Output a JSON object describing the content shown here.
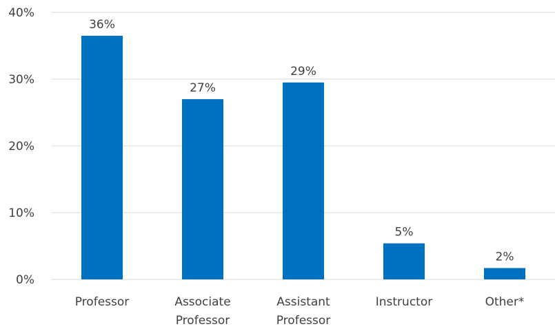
{
  "chart_data": {
    "type": "bar",
    "title": "",
    "xlabel": "",
    "ylabel": "",
    "categories": [
      [
        "Professor"
      ],
      [
        "Associate",
        "Professor"
      ],
      [
        "Assistant",
        "Professor"
      ],
      [
        "Instructor"
      ],
      [
        "Other*"
      ]
    ],
    "values": [
      36.5,
      27,
      29.5,
      5.4,
      1.7
    ],
    "data_labels": [
      "36%",
      "27%",
      "29%",
      "5%",
      "2%"
    ],
    "ylim": [
      0,
      40
    ],
    "yticks": [
      0,
      10,
      20,
      30,
      40
    ],
    "ytick_labels": [
      "0%",
      "10%",
      "20%",
      "30%",
      "40%"
    ],
    "grid": true,
    "legend": "none",
    "colors": {
      "bar": "#0070C0",
      "grid": "#D9D9D9",
      "text": "#404040"
    }
  }
}
